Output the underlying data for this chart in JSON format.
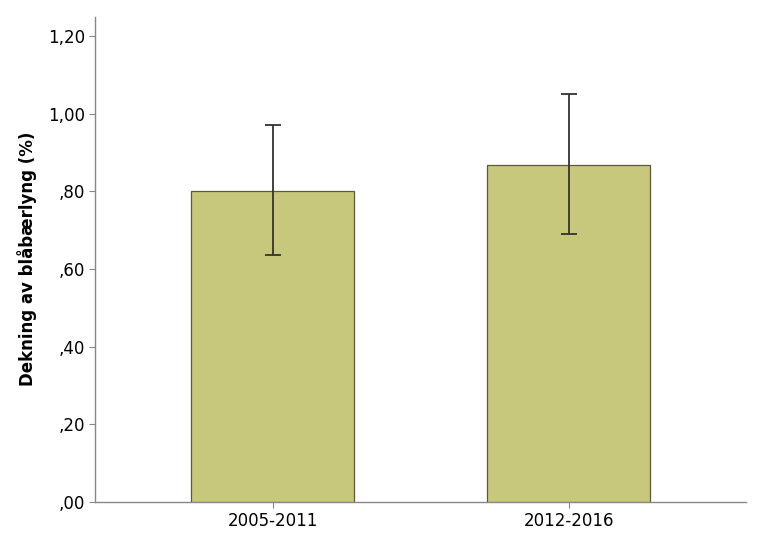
{
  "categories": [
    "2005-2011",
    "2012-2016"
  ],
  "values": [
    0.801,
    0.868
  ],
  "yerr_lower": [
    0.165,
    0.178
  ],
  "yerr_upper": [
    0.17,
    0.182
  ],
  "bar_color": "#c8c87d",
  "bar_edgecolor": "#5a5a3a",
  "error_color": "#333333",
  "ylabel": "Dekning av blåbærlyng (%)",
  "ylim": [
    0.0,
    1.25
  ],
  "yticks": [
    0.0,
    0.2,
    0.4,
    0.6,
    0.8,
    1.0,
    1.2
  ],
  "ytick_labels": [
    ",00",
    ",20",
    ",40",
    ",60",
    ",80",
    "1,00",
    "1,20"
  ],
  "bar_width": 0.55,
  "background_color": "#ffffff",
  "axes_background": "#ffffff",
  "capsize": 6,
  "error_linewidth": 1.3,
  "spine_color": "#888888"
}
